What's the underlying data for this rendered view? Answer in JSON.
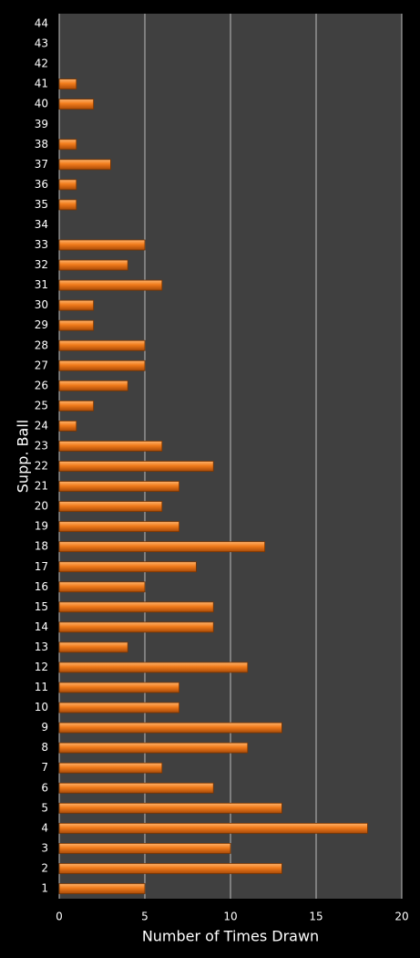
{
  "chart_data": {
    "type": "barh",
    "xlabel": "Number of Times Drawn",
    "ylabel": "Supp. Ball",
    "categories": [
      "1",
      "2",
      "3",
      "4",
      "5",
      "6",
      "7",
      "8",
      "9",
      "10",
      "11",
      "12",
      "13",
      "14",
      "15",
      "16",
      "17",
      "18",
      "19",
      "20",
      "21",
      "22",
      "23",
      "24",
      "25",
      "26",
      "27",
      "28",
      "29",
      "30",
      "31",
      "32",
      "33",
      "34",
      "35",
      "36",
      "37",
      "38",
      "39",
      "40",
      "41",
      "42",
      "43",
      "44"
    ],
    "values": [
      5,
      13,
      10,
      18,
      13,
      9,
      6,
      11,
      13,
      7,
      7,
      11,
      4,
      9,
      9,
      5,
      8,
      12,
      7,
      6,
      7,
      9,
      6,
      1,
      2,
      4,
      5,
      5,
      2,
      2,
      6,
      4,
      5,
      0,
      1,
      1,
      3,
      1,
      0,
      2,
      1,
      0,
      0,
      0
    ],
    "color": "#f07a1a",
    "xlim": [
      0,
      20
    ],
    "xticks": [
      0,
      5,
      10,
      15,
      20
    ],
    "grid": true
  }
}
